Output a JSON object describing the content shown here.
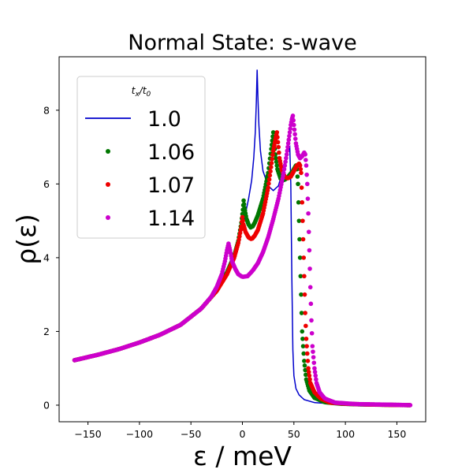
{
  "chart_data": {
    "type": "line",
    "title": "Normal State: s-wave",
    "xlabel": "ε / meV",
    "ylabel": "ρ(ε)",
    "xlim": [
      -178,
      178
    ],
    "ylim": [
      -0.45,
      9.45
    ],
    "x_ticks": [
      -150,
      -100,
      -50,
      0,
      50,
      100,
      150
    ],
    "x_tick_labels": [
      "−150",
      "−100",
      "−50",
      "0",
      "50",
      "100",
      "150"
    ],
    "y_ticks": [
      0,
      2,
      4,
      6,
      8
    ],
    "y_tick_labels": [
      "0",
      "2",
      "4",
      "6",
      "8"
    ],
    "grid": false,
    "legend": {
      "title": "tx/t0",
      "title_main": "t",
      "title_sub1": "x",
      "title_sep": "/t",
      "title_sub2": "0",
      "position": "top-left"
    },
    "series": [
      {
        "name": "1.0",
        "style": "line",
        "color": "#0000cc",
        "x": [
          -163,
          -140,
          -120,
          -100,
          -80,
          -60,
          -40,
          -25,
          -15,
          -8,
          -3,
          0,
          3,
          6,
          9,
          11,
          12.5,
          13.5,
          14.3,
          15,
          16,
          17.5,
          20,
          25,
          30,
          35,
          38,
          41,
          44,
          46,
          47,
          48,
          49,
          50,
          52,
          55,
          60,
          70,
          90,
          120,
          163
        ],
        "y": [
          1.22,
          1.37,
          1.52,
          1.7,
          1.91,
          2.18,
          2.62,
          3.1,
          3.6,
          4.1,
          4.5,
          4.85,
          5.2,
          5.6,
          6.1,
          6.7,
          7.4,
          8.2,
          9.1,
          8.4,
          7.6,
          6.9,
          6.35,
          5.95,
          5.82,
          5.95,
          6.25,
          6.6,
          6.9,
          7.0,
          6.0,
          3.5,
          1.5,
          0.8,
          0.45,
          0.28,
          0.15,
          0.07,
          0.03,
          0.01,
          0.0
        ]
      },
      {
        "name": "1.06",
        "style": "dots",
        "color": "#007700",
        "x": [
          -163,
          -140,
          -120,
          -100,
          -80,
          -60,
          -40,
          -25,
          -15,
          -8,
          -4,
          -1,
          0.5,
          1.2,
          2,
          4,
          6,
          8,
          10,
          12,
          15,
          20,
          25,
          28,
          30,
          31,
          32,
          34,
          37,
          40,
          43,
          46,
          49,
          51,
          52,
          53,
          54,
          55,
          56,
          57,
          58,
          60,
          62,
          65,
          70,
          80,
          95,
          115,
          140,
          163
        ],
        "y": [
          1.22,
          1.37,
          1.52,
          1.7,
          1.91,
          2.18,
          2.62,
          3.1,
          3.6,
          4.05,
          4.45,
          4.95,
          5.3,
          5.55,
          5.35,
          5.05,
          4.9,
          4.82,
          4.85,
          4.95,
          5.15,
          5.6,
          6.3,
          6.95,
          7.4,
          7.1,
          6.8,
          6.4,
          6.15,
          6.1,
          6.15,
          6.25,
          6.35,
          6.45,
          6.5,
          6.4,
          6.0,
          5.0,
          4.0,
          3.0,
          2.0,
          1.2,
          0.7,
          0.4,
          0.2,
          0.08,
          0.04,
          0.02,
          0.01,
          0.0
        ]
      },
      {
        "name": "1.07",
        "style": "dots",
        "color": "#ee0000",
        "x": [
          -163,
          -140,
          -120,
          -100,
          -80,
          -60,
          -40,
          -25,
          -15,
          -8,
          -4,
          -1,
          0,
          1,
          3,
          6,
          9,
          12,
          15,
          20,
          25,
          30,
          32,
          33.5,
          35,
          36,
          38,
          41,
          44,
          47,
          50,
          53,
          55,
          56,
          57,
          58,
          59,
          60,
          61,
          62,
          64,
          66,
          70,
          76,
          85,
          100,
          120,
          140,
          163
        ],
        "y": [
          1.22,
          1.37,
          1.52,
          1.7,
          1.91,
          2.18,
          2.62,
          3.1,
          3.55,
          4.0,
          4.4,
          4.85,
          5.1,
          4.9,
          4.7,
          4.55,
          4.5,
          4.6,
          4.75,
          5.2,
          5.9,
          6.9,
          7.2,
          7.4,
          7.0,
          6.7,
          6.4,
          6.2,
          6.15,
          6.2,
          6.35,
          6.5,
          6.55,
          6.5,
          6.3,
          5.5,
          4.5,
          3.5,
          2.5,
          1.8,
          1.0,
          0.6,
          0.35,
          0.18,
          0.07,
          0.04,
          0.02,
          0.01,
          0.0
        ]
      },
      {
        "name": "1.14",
        "style": "dots",
        "color": "#cc00cc",
        "x": [
          -163,
          -140,
          -120,
          -100,
          -80,
          -60,
          -40,
          -30,
          -25,
          -20,
          -17,
          -15,
          -13.5,
          -12,
          -10,
          -7,
          -4,
          0,
          5,
          10,
          15,
          20,
          25,
          30,
          35,
          40,
          43,
          45,
          47,
          48,
          49,
          50,
          52,
          54,
          56,
          58,
          60,
          61,
          62,
          63,
          64,
          65,
          66,
          67,
          68,
          70,
          72,
          75,
          80,
          90,
          110,
          130,
          150,
          163
        ],
        "y": [
          1.22,
          1.37,
          1.52,
          1.7,
          1.91,
          2.18,
          2.62,
          2.95,
          3.2,
          3.55,
          3.9,
          4.2,
          4.38,
          4.2,
          3.9,
          3.7,
          3.55,
          3.48,
          3.5,
          3.65,
          3.85,
          4.15,
          4.55,
          5.05,
          5.6,
          6.3,
          6.8,
          7.2,
          7.6,
          7.75,
          7.85,
          7.6,
          7.1,
          6.8,
          6.7,
          6.75,
          6.85,
          6.8,
          6.5,
          6.0,
          5.2,
          4.2,
          3.2,
          2.3,
          1.6,
          1.0,
          0.6,
          0.35,
          0.18,
          0.07,
          0.03,
          0.02,
          0.01,
          0.0
        ]
      }
    ]
  }
}
